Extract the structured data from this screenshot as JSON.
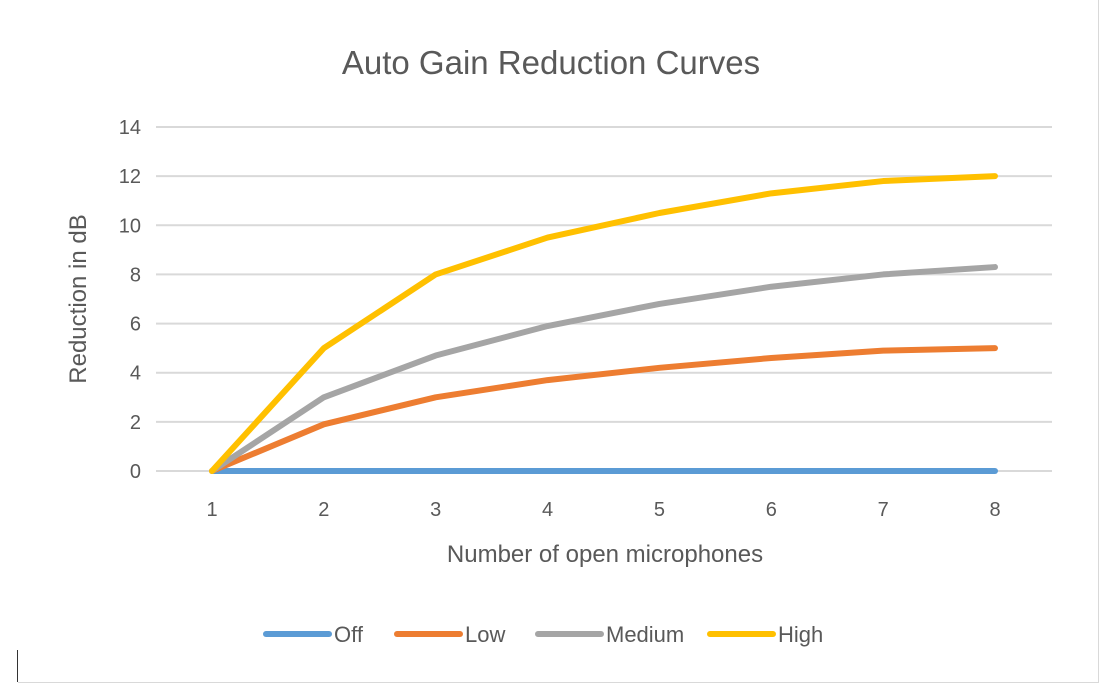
{
  "chart_data": {
    "type": "line",
    "title": "Auto Gain Reduction Curves",
    "xlabel": "Number of open microphones",
    "ylabel": "Reduction in dB",
    "x": [
      1,
      2,
      3,
      4,
      5,
      6,
      7,
      8
    ],
    "x_tick_labels": [
      "1",
      "2",
      "3",
      "4",
      "5",
      "6",
      "7",
      "8"
    ],
    "y_tick_labels": [
      "0",
      "2",
      "4",
      "6",
      "8",
      "10",
      "12",
      "14"
    ],
    "ylim": [
      0,
      14
    ],
    "grid": true,
    "legend_position": "bottom",
    "series": [
      {
        "name": "Off",
        "color": "#5b9bd5",
        "values": [
          0,
          0,
          0,
          0,
          0,
          0,
          0,
          0
        ]
      },
      {
        "name": "Low",
        "color": "#ed7d31",
        "values": [
          0,
          1.9,
          3.0,
          3.7,
          4.2,
          4.6,
          4.9,
          5.0
        ]
      },
      {
        "name": "Medium",
        "color": "#a5a5a5",
        "values": [
          0,
          3.0,
          4.7,
          5.9,
          6.8,
          7.5,
          8.0,
          8.3
        ]
      },
      {
        "name": "High",
        "color": "#ffc000",
        "values": [
          0,
          5.0,
          8.0,
          9.5,
          10.5,
          11.3,
          11.8,
          12.0
        ]
      }
    ]
  }
}
